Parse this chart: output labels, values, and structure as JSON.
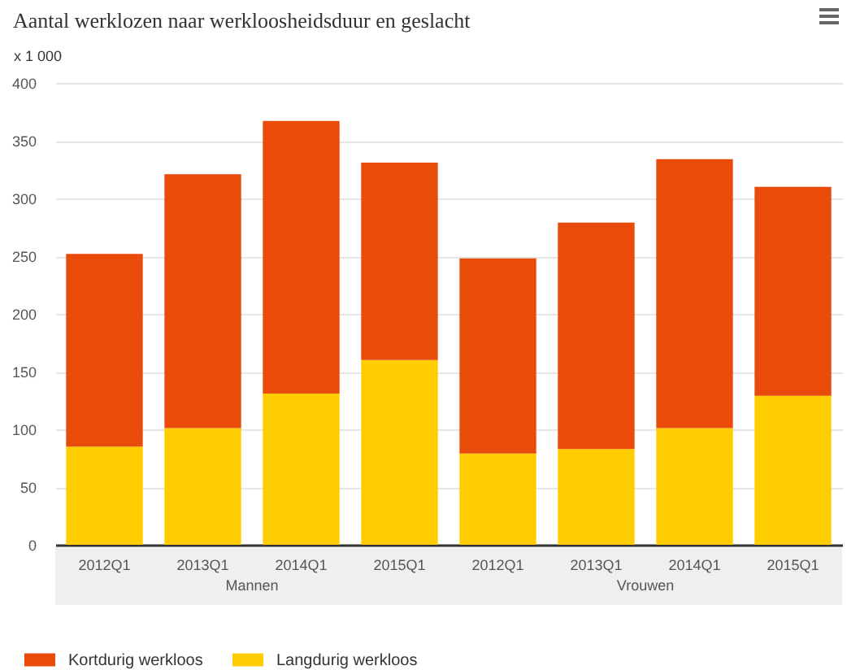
{
  "chart_data": {
    "type": "bar",
    "title": "Aantal werklozen naar werkloosheidsduur en geslacht",
    "ylabel": "x 1 000",
    "categories": [
      "2012Q1",
      "2013Q1",
      "2014Q1",
      "2015Q1",
      "2012Q1",
      "2013Q1",
      "2014Q1",
      "2015Q1"
    ],
    "series": [
      {
        "name": "Langdurig werkloos",
        "color": "#ffcc00",
        "values": [
          85,
          101,
          131,
          160,
          79,
          83,
          101,
          129
        ]
      },
      {
        "name": "Kortdurig werkloos",
        "color": "#e94c0a",
        "values": [
          167,
          220,
          236,
          171,
          169,
          196,
          233,
          181
        ]
      }
    ],
    "stacked": true,
    "ylim": [
      0,
      400
    ],
    "yticks": [
      0,
      50,
      100,
      150,
      200,
      250,
      300,
      350,
      400
    ],
    "grid": "y",
    "legend": "bottom",
    "annotations": [
      "Mannen",
      "Vrouwen"
    ]
  }
}
